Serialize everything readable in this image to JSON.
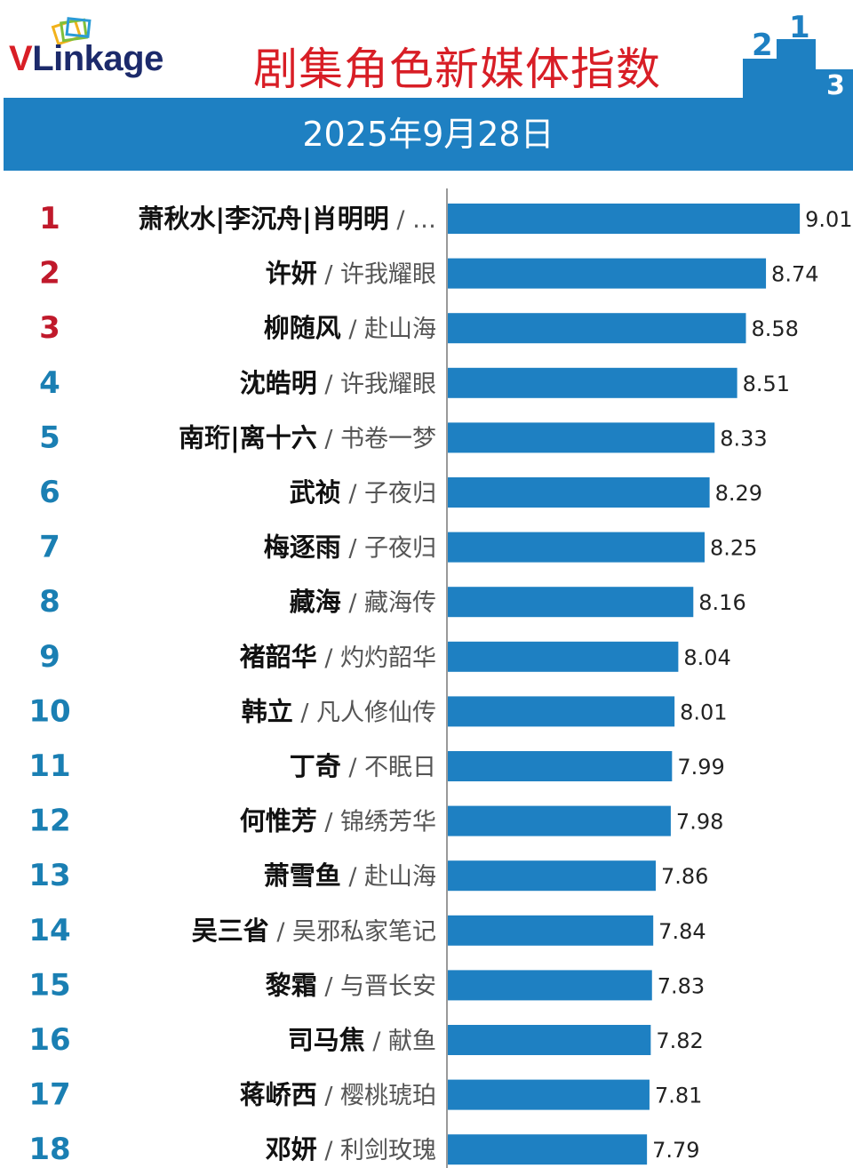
{
  "header": {
    "logo_v": "V",
    "logo_rest": "Linkage",
    "title": "剧集角色新媒体指数",
    "podium_labels": [
      "2",
      "1",
      "3"
    ],
    "date": "2025年9月28日"
  },
  "colors": {
    "band": "#1e80c2",
    "bar": "#1e80c2",
    "title_red": "#d81e26",
    "rank_top": "#c0192b",
    "rank_other": "#1a7fb3"
  },
  "chart_data": {
    "type": "bar",
    "orientation": "horizontal",
    "title": "剧集角色新媒体指数",
    "subtitle": "2025年9月28日",
    "separator": " / ",
    "xlim": [
      6.2,
      9.3
    ],
    "categories": [
      {
        "rank": "1",
        "character": "萧秋水|李沉舟|肖明明",
        "show": "…"
      },
      {
        "rank": "2",
        "character": "许妍",
        "show": "许我耀眼"
      },
      {
        "rank": "3",
        "character": "柳随风",
        "show": "赴山海"
      },
      {
        "rank": "4",
        "character": "沈皓明",
        "show": "许我耀眼"
      },
      {
        "rank": "5",
        "character": "南珩|离十六",
        "show": "书卷一梦"
      },
      {
        "rank": "6",
        "character": "武祯",
        "show": "子夜归"
      },
      {
        "rank": "7",
        "character": "梅逐雨",
        "show": "子夜归"
      },
      {
        "rank": "8",
        "character": "藏海",
        "show": "藏海传"
      },
      {
        "rank": "9",
        "character": "褚韶华",
        "show": "灼灼韶华"
      },
      {
        "rank": "10",
        "character": "韩立",
        "show": "凡人修仙传"
      },
      {
        "rank": "11",
        "character": "丁奇",
        "show": "不眠日"
      },
      {
        "rank": "12",
        "character": "何惟芳",
        "show": "锦绣芳华"
      },
      {
        "rank": "13",
        "character": "萧雪鱼",
        "show": "赴山海"
      },
      {
        "rank": "14",
        "character": "吴三省",
        "show": "吴邪私家笔记"
      },
      {
        "rank": "15",
        "character": "黎霜",
        "show": "与晋长安"
      },
      {
        "rank": "16",
        "character": "司马焦",
        "show": "献鱼"
      },
      {
        "rank": "17",
        "character": "蒋峤西",
        "show": "樱桃琥珀"
      },
      {
        "rank": "18",
        "character": "邓妍",
        "show": "利剑玫瑰"
      }
    ],
    "values": [
      "9.01",
      "8.74",
      "8.58",
      "8.51",
      "8.33",
      "8.29",
      "8.25",
      "8.16",
      "8.04",
      "8.01",
      "7.99",
      "7.98",
      "7.86",
      "7.84",
      "7.83",
      "7.82",
      "7.81",
      "7.79"
    ]
  }
}
